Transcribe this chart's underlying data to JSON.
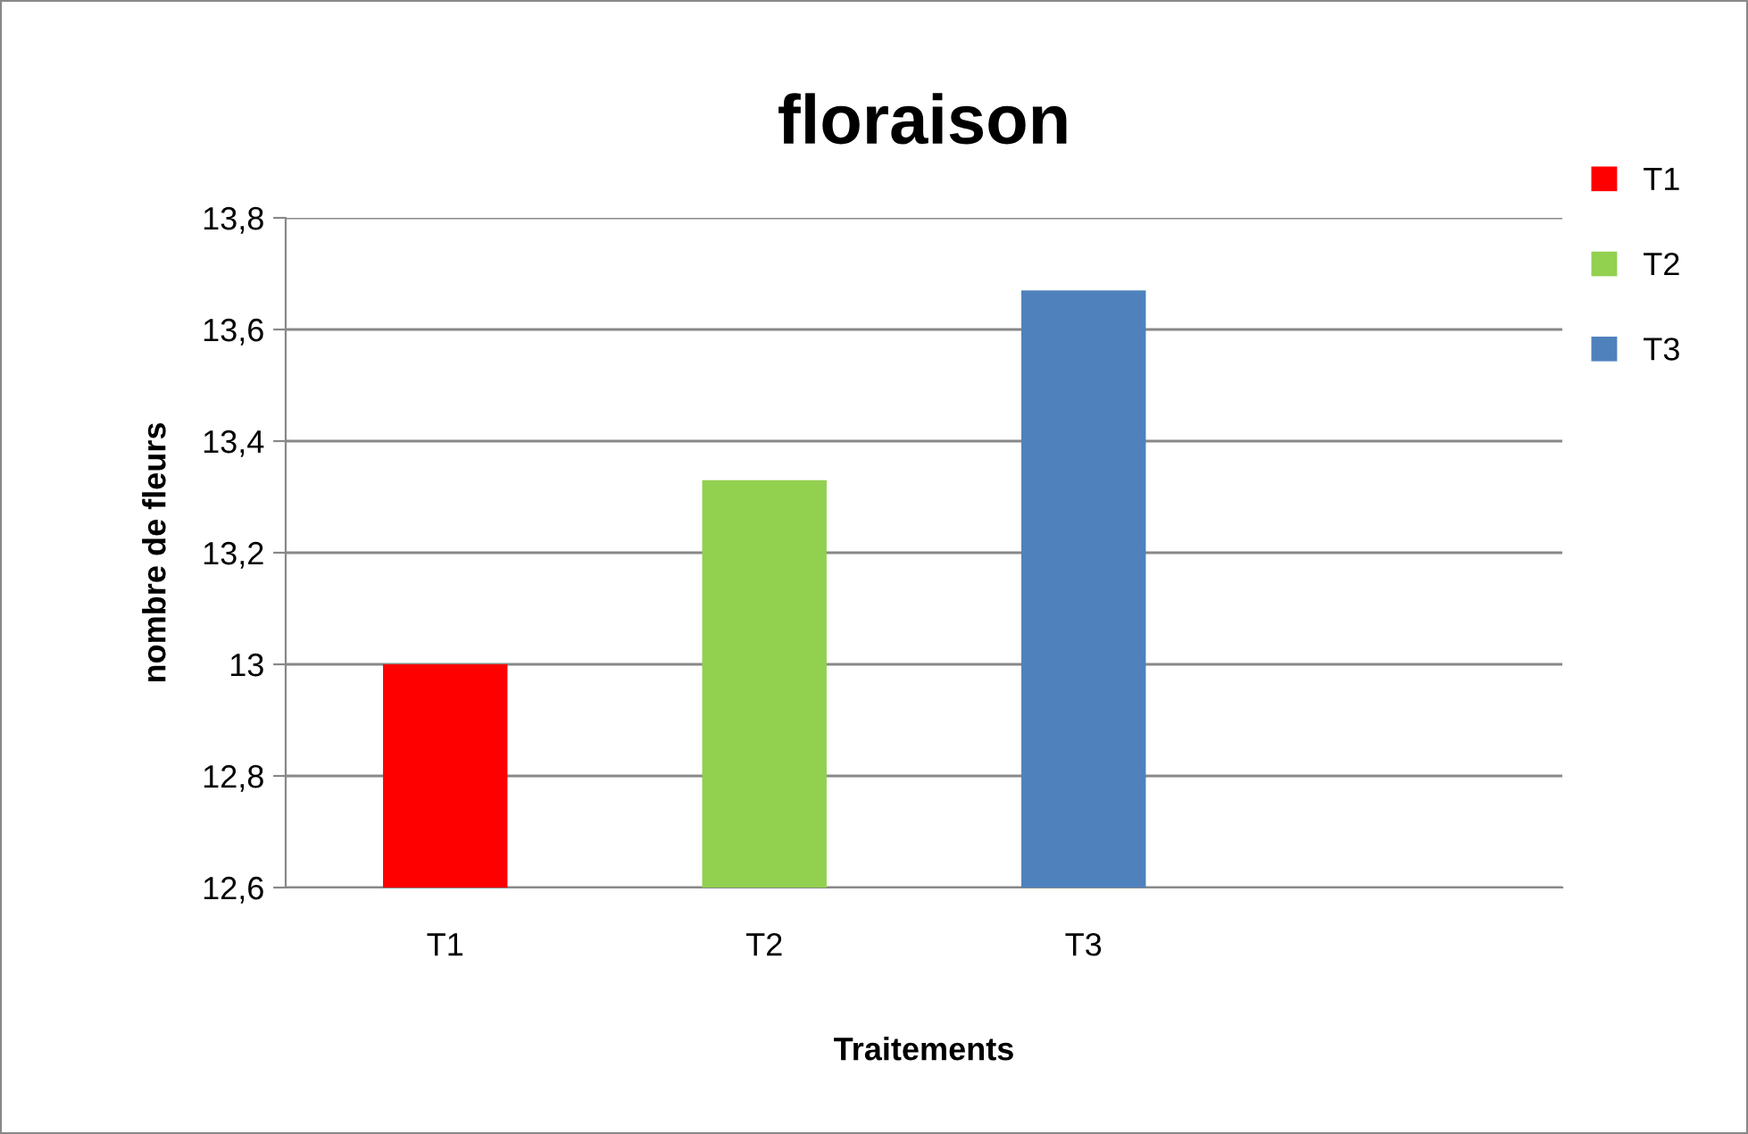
{
  "chart_data": {
    "type": "bar",
    "title": "floraison",
    "xlabel": "Traitements",
    "ylabel": "nombre de fleurs",
    "categories": [
      "T1",
      "T2",
      "T3",
      null
    ],
    "series": [
      {
        "name": "T1",
        "color": "#ff0000",
        "values": [
          13.0,
          null,
          null,
          null
        ]
      },
      {
        "name": "T2",
        "color": "#92d050",
        "values": [
          null,
          13.33,
          null,
          null
        ]
      },
      {
        "name": "T3",
        "color": "#4f81bd",
        "values": [
          null,
          null,
          13.67,
          null
        ]
      }
    ],
    "ylim": [
      12.6,
      13.8
    ],
    "yticks": [
      {
        "value": 12.6,
        "label": "12,6"
      },
      {
        "value": 12.8,
        "label": "12,8"
      },
      13,
      {
        "value": 13.2,
        "label": "13,2"
      },
      {
        "value": 13.4,
        "label": "13,4"
      },
      {
        "value": 13.6,
        "label": "13,6"
      },
      {
        "value": 13.8,
        "label": "13,8"
      }
    ],
    "grid": "y",
    "legend": "top right"
  }
}
